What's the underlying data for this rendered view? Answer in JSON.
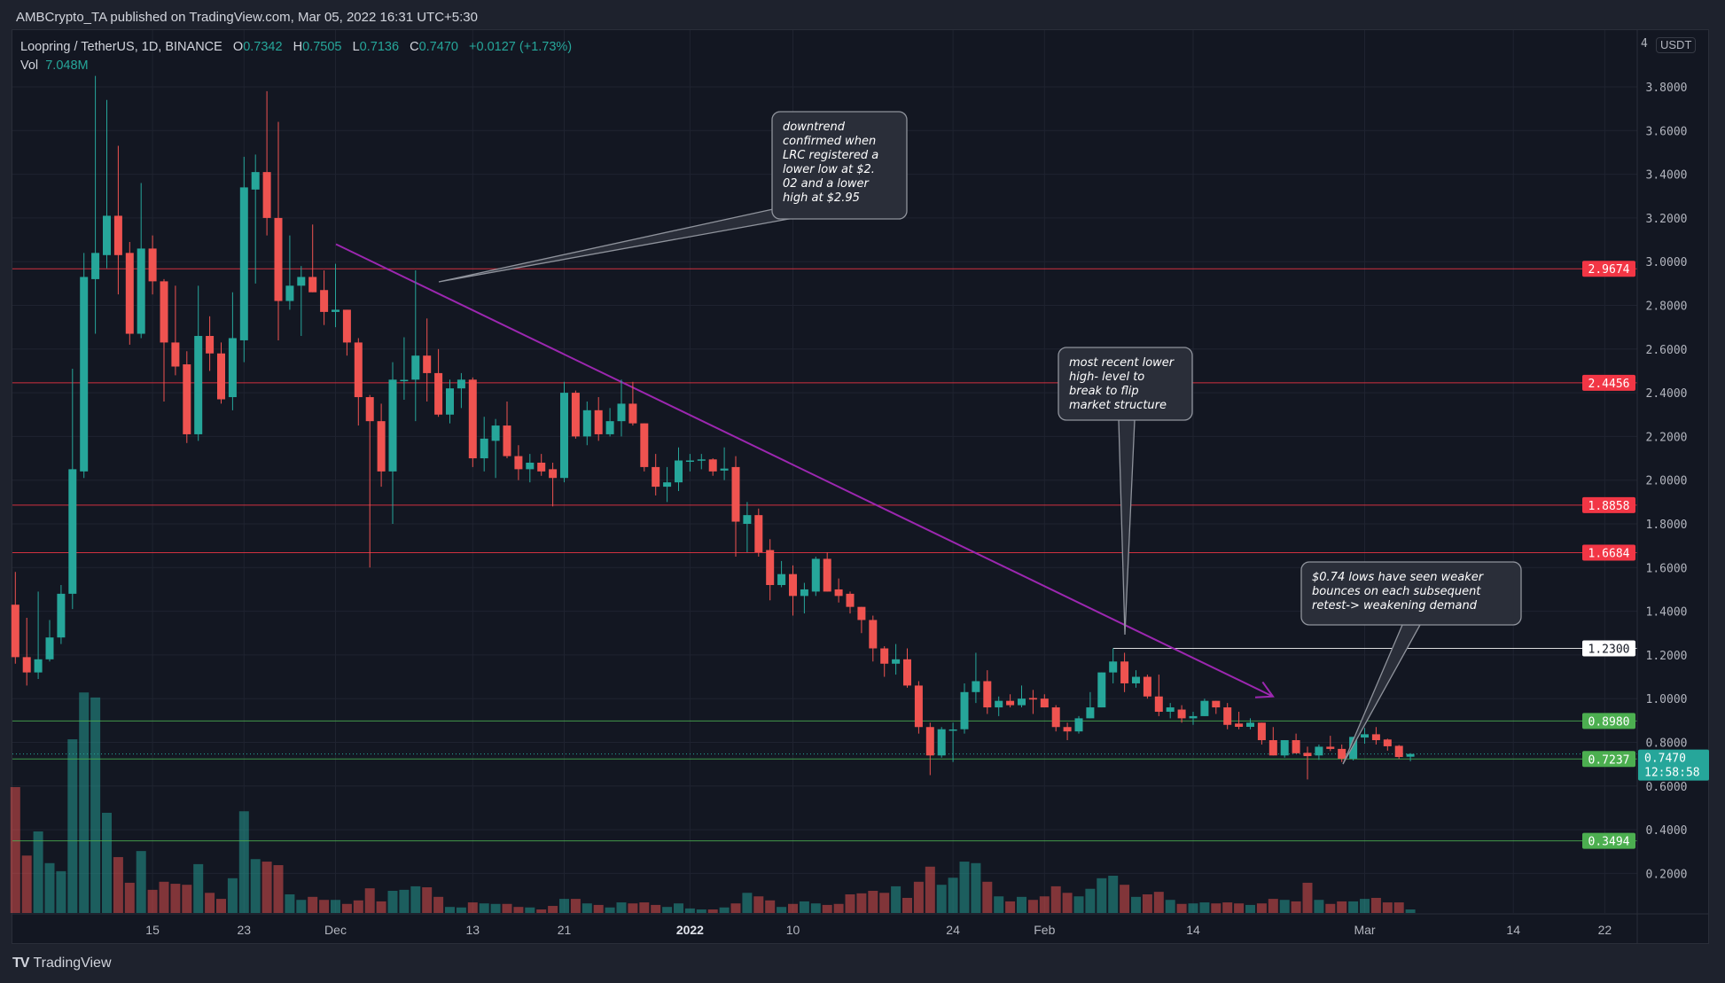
{
  "publisher": "AMBCrypto_TA published on TradingView.com, Mar 05, 2022 16:31 UTC+5:30",
  "legend": {
    "symbol": "Loopring / TetherUS, 1D, BINANCE",
    "o_label": "O",
    "o_value": "0.7342",
    "h_label": "H",
    "h_value": "0.7505",
    "l_label": "L",
    "l_value": "0.7136",
    "c_label": "C",
    "c_value": "0.7470",
    "change": "+0.0127 (+1.73%)",
    "vol_label": "Vol",
    "vol_value": "7.048M"
  },
  "price_axis": {
    "currency": "USDT",
    "top_label": "4",
    "ticks": [
      "3.8000",
      "3.6000",
      "3.4000",
      "3.2000",
      "3.0000",
      "2.8000",
      "2.6000",
      "2.4000",
      "2.2000",
      "2.0000",
      "1.8000",
      "1.6000",
      "1.4000",
      "1.2000",
      "1.0000",
      "0.8000",
      "0.6000",
      "0.4000",
      "0.2000"
    ],
    "current_price": "0.7470",
    "countdown": "12:58:58"
  },
  "time_axis": {
    "ticks": [
      "15",
      "23",
      "Dec",
      "13",
      "21",
      "2022",
      "10",
      "24",
      "Feb",
      "14",
      "Mar",
      "14",
      "22"
    ]
  },
  "colors": {
    "up": "#26a69a",
    "down": "#ef5350",
    "level_red": "#f23645",
    "level_green": "#4caf50",
    "level_white": "#ffffff",
    "trendline": "#9c27b0",
    "background": "#131722"
  },
  "levels": [
    {
      "price": 2.9674,
      "label": "2.9674",
      "color": "#f23645"
    },
    {
      "price": 2.4456,
      "label": "2.4456",
      "color": "#f23645"
    },
    {
      "price": 1.8858,
      "label": "1.8858",
      "color": "#f23645"
    },
    {
      "price": 1.6684,
      "label": "1.6684",
      "color": "#f23645"
    },
    {
      "price": 1.23,
      "label": "1.2300",
      "color": "#ffffff"
    },
    {
      "price": 0.898,
      "label": "0.8980",
      "color": "#4caf50"
    },
    {
      "price": 0.7237,
      "label": "0.7237",
      "color": "#4caf50"
    },
    {
      "price": 0.3494,
      "label": "0.3494",
      "color": "#4caf50"
    }
  ],
  "annotations": [
    {
      "lines": [
        "downtrend",
        "confirmed when",
        "LRC registered a",
        "lower low at $2.",
        "02 and a lower",
        "high at $2.95"
      ]
    },
    {
      "lines": [
        "most recent lower",
        "high- level to",
        "break to flip",
        "market structure"
      ]
    },
    {
      "lines": [
        "$0.74 lows have seen weaker",
        "bounces on each subsequent",
        "retest-> weakening demand"
      ]
    }
  ],
  "footer": {
    "brand": "TradingView",
    "logo": "TV"
  },
  "chart_data": {
    "type": "candlestick",
    "symbol": "Loopring / TetherUS",
    "interval": "1D",
    "exchange": "BINANCE",
    "ylim": [
      0,
      4
    ],
    "grid": true,
    "ohlc_fields": [
      "open",
      "high",
      "low",
      "close"
    ],
    "ohlc": [
      [
        1.43,
        1.58,
        1.16,
        1.19
      ],
      [
        1.19,
        1.37,
        1.06,
        1.12
      ],
      [
        1.12,
        1.49,
        1.09,
        1.18
      ],
      [
        1.18,
        1.36,
        1.17,
        1.28
      ],
      [
        1.28,
        1.52,
        1.25,
        1.48
      ],
      [
        1.48,
        2.51,
        1.41,
        2.05
      ],
      [
        2.04,
        3.04,
        2.01,
        2.93
      ],
      [
        2.92,
        3.85,
        2.67,
        3.04
      ],
      [
        3.03,
        3.74,
        2.97,
        3.21
      ],
      [
        3.21,
        3.53,
        2.85,
        3.03
      ],
      [
        3.04,
        3.09,
        2.62,
        2.67
      ],
      [
        2.67,
        3.36,
        2.65,
        3.06
      ],
      [
        3.06,
        3.12,
        2.85,
        2.91
      ],
      [
        2.91,
        2.92,
        2.36,
        2.63
      ],
      [
        2.63,
        2.89,
        2.48,
        2.52
      ],
      [
        2.53,
        2.59,
        2.17,
        2.21
      ],
      [
        2.21,
        2.89,
        2.18,
        2.66
      ],
      [
        2.66,
        2.75,
        2.5,
        2.58
      ],
      [
        2.58,
        2.63,
        2.35,
        2.37
      ],
      [
        2.38,
        2.86,
        2.32,
        2.65
      ],
      [
        2.64,
        3.48,
        2.54,
        3.34
      ],
      [
        3.33,
        3.49,
        2.9,
        3.41
      ],
      [
        3.41,
        3.78,
        3.12,
        3.2
      ],
      [
        3.2,
        3.64,
        2.64,
        2.82
      ],
      [
        2.82,
        3.12,
        2.78,
        2.89
      ],
      [
        2.89,
        2.98,
        2.66,
        2.93
      ],
      [
        2.93,
        3.17,
        2.86,
        2.86
      ],
      [
        2.87,
        2.96,
        2.71,
        2.77
      ],
      [
        2.77,
        2.99,
        2.7,
        2.78
      ],
      [
        2.78,
        2.78,
        2.57,
        2.63
      ],
      [
        2.63,
        2.65,
        2.25,
        2.38
      ],
      [
        2.38,
        2.39,
        1.6,
        2.27
      ],
      [
        2.27,
        2.35,
        1.97,
        2.04
      ],
      [
        2.04,
        2.54,
        1.8,
        2.46
      ],
      [
        2.455,
        2.654,
        2.368,
        2.459
      ],
      [
        2.46,
        2.96,
        2.27,
        2.57
      ],
      [
        2.57,
        2.74,
        2.36,
        2.49
      ],
      [
        2.49,
        2.6,
        2.29,
        2.3
      ],
      [
        2.3,
        2.46,
        2.26,
        2.42
      ],
      [
        2.42,
        2.49,
        2.33,
        2.46
      ],
      [
        2.46,
        2.47,
        2.06,
        2.1
      ],
      [
        2.1,
        2.29,
        2.04,
        2.19
      ],
      [
        2.18,
        2.28,
        2.01,
        2.25
      ],
      [
        2.25,
        2.36,
        2.1,
        2.11
      ],
      [
        2.11,
        2.16,
        2.0,
        2.05
      ],
      [
        2.05,
        2.12,
        1.99,
        2.08
      ],
      [
        2.08,
        2.12,
        2.02,
        2.04
      ],
      [
        2.05,
        2.08,
        1.88,
        2.01
      ],
      [
        2.01,
        2.45,
        1.99,
        2.4
      ],
      [
        2.4,
        2.41,
        2.19,
        2.2
      ],
      [
        2.2,
        2.36,
        2.16,
        2.32
      ],
      [
        2.32,
        2.38,
        2.18,
        2.21
      ],
      [
        2.21,
        2.33,
        2.2,
        2.27
      ],
      [
        2.27,
        2.46,
        2.2,
        2.35
      ],
      [
        2.35,
        2.45,
        2.25,
        2.26
      ],
      [
        2.26,
        2.26,
        2.04,
        2.06
      ],
      [
        2.06,
        2.12,
        1.93,
        1.97
      ],
      [
        1.97,
        2.06,
        1.9,
        1.99
      ],
      [
        1.99,
        2.15,
        1.95,
        2.09
      ],
      [
        2.086,
        2.12,
        2.04,
        2.09
      ],
      [
        2.09,
        2.12,
        2.05,
        2.095
      ],
      [
        2.095,
        2.1,
        2.02,
        2.04
      ],
      [
        2.044,
        2.15,
        2.0,
        2.053
      ],
      [
        2.06,
        2.11,
        1.65,
        1.81
      ],
      [
        1.8,
        1.9,
        1.67,
        1.84
      ],
      [
        1.84,
        1.87,
        1.65,
        1.67
      ],
      [
        1.68,
        1.73,
        1.45,
        1.52
      ],
      [
        1.52,
        1.63,
        1.51,
        1.57
      ],
      [
        1.57,
        1.61,
        1.38,
        1.47
      ],
      [
        1.47,
        1.53,
        1.39,
        1.5
      ],
      [
        1.49,
        1.65,
        1.47,
        1.64
      ],
      [
        1.64,
        1.67,
        1.49,
        1.49
      ],
      [
        1.5,
        1.55,
        1.44,
        1.47
      ],
      [
        1.48,
        1.49,
        1.39,
        1.42
      ],
      [
        1.42,
        1.42,
        1.3,
        1.36
      ],
      [
        1.36,
        1.38,
        1.17,
        1.23
      ],
      [
        1.23,
        1.24,
        1.1,
        1.16
      ],
      [
        1.16,
        1.25,
        1.11,
        1.18
      ],
      [
        1.18,
        1.23,
        1.05,
        1.06
      ],
      [
        1.06,
        1.08,
        0.84,
        0.87
      ],
      [
        0.87,
        0.89,
        0.65,
        0.74
      ],
      [
        0.74,
        0.87,
        0.73,
        0.86
      ],
      [
        0.854,
        0.89,
        0.71,
        0.859
      ],
      [
        0.86,
        1.07,
        0.84,
        1.03
      ],
      [
        1.03,
        1.21,
        0.98,
        1.08
      ],
      [
        1.08,
        1.13,
        0.93,
        0.96
      ],
      [
        0.96,
        1.01,
        0.92,
        0.99
      ],
      [
        0.99,
        1.02,
        0.96,
        0.97
      ],
      [
        0.97,
        1.06,
        0.96,
        1.0
      ],
      [
        1.003,
        1.04,
        0.93,
        0.996
      ],
      [
        1.0,
        1.02,
        0.96,
        0.96
      ],
      [
        0.96,
        0.97,
        0.85,
        0.87
      ],
      [
        0.87,
        0.89,
        0.81,
        0.85
      ],
      [
        0.85,
        0.92,
        0.84,
        0.91
      ],
      [
        0.91,
        1.03,
        0.91,
        0.96
      ],
      [
        0.96,
        1.12,
        0.96,
        1.12
      ],
      [
        1.12,
        1.23,
        1.07,
        1.17
      ],
      [
        1.17,
        1.21,
        1.03,
        1.07
      ],
      [
        1.07,
        1.13,
        1.05,
        1.1
      ],
      [
        1.1,
        1.11,
        1.0,
        1.01
      ],
      [
        1.01,
        1.11,
        0.92,
        0.94
      ],
      [
        0.94,
        0.98,
        0.91,
        0.96
      ],
      [
        0.95,
        0.97,
        0.89,
        0.91
      ],
      [
        0.91,
        0.94,
        0.88,
        0.92
      ],
      [
        0.92,
        1.0,
        0.92,
        0.99
      ],
      [
        0.99,
        0.99,
        0.93,
        0.96
      ],
      [
        0.96,
        0.98,
        0.86,
        0.88
      ],
      [
        0.886,
        0.94,
        0.86,
        0.871
      ],
      [
        0.871,
        0.91,
        0.86,
        0.89
      ],
      [
        0.89,
        0.89,
        0.79,
        0.81
      ],
      [
        0.81,
        0.87,
        0.74,
        0.74
      ],
      [
        0.74,
        0.81,
        0.73,
        0.81
      ],
      [
        0.81,
        0.84,
        0.75,
        0.75
      ],
      [
        0.752,
        0.78,
        0.63,
        0.737
      ],
      [
        0.74,
        0.79,
        0.72,
        0.78
      ],
      [
        0.78,
        0.83,
        0.76,
        0.77
      ],
      [
        0.77,
        0.79,
        0.71,
        0.725
      ],
      [
        0.725,
        0.825,
        0.717,
        0.825
      ],
      [
        0.822,
        0.866,
        0.794,
        0.837
      ],
      [
        0.837,
        0.87,
        0.79,
        0.81
      ],
      [
        0.813,
        0.817,
        0.762,
        0.782
      ],
      [
        0.784,
        0.788,
        0.724,
        0.733
      ],
      [
        0.7342,
        0.7505,
        0.7136,
        0.747
      ]
    ],
    "volume_unit": "M",
    "volume": [
      250,
      114,
      162,
      99,
      83,
      345,
      438,
      428,
      199,
      111,
      60,
      123,
      46,
      62,
      58,
      56,
      97,
      40,
      28,
      69,
      202,
      107,
      102,
      95,
      37,
      26,
      32,
      26,
      26,
      18,
      25,
      49,
      23,
      44,
      46,
      53,
      51,
      32,
      12,
      11,
      21,
      19,
      18,
      18,
      12,
      11,
      7,
      14,
      28,
      28,
      19,
      16,
      11,
      21,
      19,
      21,
      16,
      12,
      19,
      9,
      7,
      7,
      11,
      19,
      40,
      33,
      25,
      12,
      18,
      23,
      19,
      16,
      18,
      37,
      39,
      44,
      40,
      53,
      30,
      62,
      92,
      56,
      70,
      102,
      99,
      62,
      33,
      23,
      32,
      26,
      33,
      53,
      40,
      33,
      48,
      69,
      74,
      56,
      32,
      37,
      42,
      26,
      18,
      19,
      21,
      19,
      21,
      19,
      16,
      19,
      28,
      26,
      23,
      60,
      26,
      18,
      23,
      23,
      28,
      30,
      21,
      21,
      7.048
    ],
    "trendline": {
      "from_price": 3.08,
      "to_price": 1.01,
      "arrow": true
    }
  }
}
